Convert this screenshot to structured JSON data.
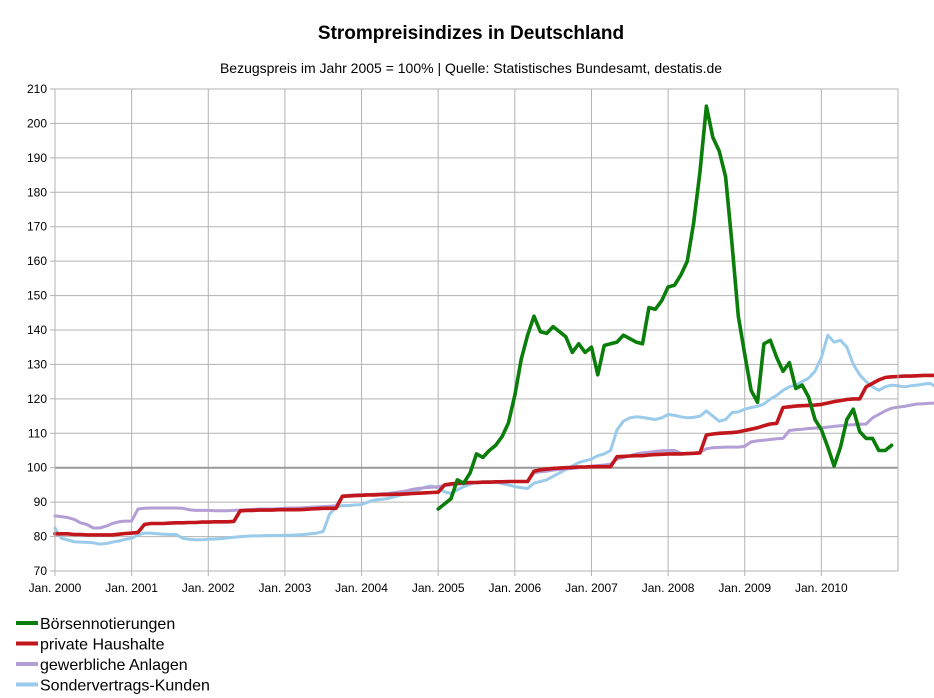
{
  "chart_data": {
    "type": "line",
    "title": "Strompreisindizes in Deutschland",
    "subtitle": "Bezugspreis im Jahr 2005 = 100% | Quelle: Statistisches Bundesamt, destatis.de",
    "xlabel": "",
    "ylabel": "",
    "x_ticks": [
      "Jan. 2000",
      "Jan. 2001",
      "Jan. 2002",
      "Jan. 2003",
      "Jan. 2004",
      "Jan. 2005",
      "Jan. 2006",
      "Jan. 2007",
      "Jan. 2008",
      "Jan. 2009",
      "Jan. 2010"
    ],
    "y_ticks": [
      70,
      80,
      90,
      100,
      110,
      120,
      130,
      140,
      150,
      160,
      170,
      180,
      190,
      200,
      210
    ],
    "ylim": [
      70,
      210
    ],
    "xlim": [
      "2000-01",
      "2011-01"
    ],
    "grid": true,
    "reference_line": 100,
    "legend_position": "bottom-left",
    "series": [
      {
        "name": "Börsennotierungen",
        "color": "#0a7d0a",
        "start": "2005-01",
        "values": [
          88,
          89.5,
          91,
          96.5,
          95.5,
          98.5,
          104,
          103,
          105,
          106.5,
          109,
          113,
          121,
          131.5,
          138.5,
          144,
          139.5,
          139,
          141,
          139.5,
          138,
          133.5,
          136,
          133.5,
          135,
          127,
          135.5,
          136,
          136.5,
          138.5,
          137.5,
          136.5,
          136,
          146.5,
          146,
          148.5,
          152.5,
          153,
          156,
          160,
          171,
          186,
          205,
          196,
          192,
          184.5,
          165,
          144,
          133,
          122.5,
          119,
          136,
          137,
          132,
          128,
          130.5,
          123,
          124,
          120.5,
          114,
          111,
          106,
          100.5,
          106,
          114,
          117,
          110.5,
          108.5,
          108.5,
          105,
          105,
          106.5
        ]
      },
      {
        "name": "private Haushalte",
        "color": "#c0161c",
        "start": "2000-01",
        "values": [
          80.8,
          80.8,
          80.8,
          80.6,
          80.6,
          80.5,
          80.5,
          80.5,
          80.5,
          80.5,
          80.7,
          80.9,
          81,
          81.2,
          83.5,
          83.8,
          83.8,
          83.8,
          83.9,
          84,
          84,
          84.1,
          84.1,
          84.2,
          84.2,
          84.3,
          84.3,
          84.3,
          84.4,
          87.5,
          87.6,
          87.6,
          87.7,
          87.7,
          87.7,
          87.8,
          87.8,
          87.8,
          87.8,
          87.9,
          88,
          88.1,
          88.2,
          88.2,
          88.2,
          91.7,
          91.8,
          91.9,
          92,
          92.1,
          92.1,
          92.2,
          92.2,
          92.3,
          92.3,
          92.4,
          92.5,
          92.6,
          92.7,
          92.8,
          92.9,
          95,
          95.3,
          95.5,
          95.6,
          95.7,
          95.7,
          95.8,
          95.8,
          95.9,
          95.9,
          96,
          96,
          96,
          96,
          99,
          99.4,
          99.6,
          99.8,
          99.9,
          100,
          100.1,
          100.2,
          100.2,
          100.3,
          100.3,
          100.3,
          100.3,
          103.2,
          103.3,
          103.4,
          103.5,
          103.5,
          103.7,
          103.8,
          103.9,
          104,
          104,
          104,
          104.1,
          104.2,
          104.3,
          109.5,
          109.8,
          110,
          110.1,
          110.2,
          110.4,
          110.8,
          111.2,
          111.6,
          112.2,
          112.7,
          112.9,
          117.5,
          117.7,
          117.9,
          118,
          118.1,
          118.2,
          118.4,
          118.8,
          119.2,
          119.5,
          119.8,
          120,
          120,
          123.5,
          124.5,
          125.5,
          126.2,
          126.4,
          126.5,
          126.6,
          126.6,
          126.7,
          126.8,
          126.8,
          126.8,
          128,
          128.6,
          128.7,
          128.8,
          128.8,
          129,
          129.5,
          130.3,
          130.7,
          130.8,
          130.9,
          131,
          131
        ]
      },
      {
        "name": "gewerbliche Anlagen",
        "color": "#b49ed6",
        "start": "2000-01",
        "values": [
          86,
          85.8,
          85.5,
          85,
          84,
          83.5,
          82.5,
          82.5,
          83,
          83.8,
          84.3,
          84.5,
          84.5,
          88,
          88.2,
          88.3,
          88.3,
          88.3,
          88.3,
          88.3,
          88.2,
          87.8,
          87.6,
          87.6,
          87.6,
          87.5,
          87.5,
          87.5,
          87.6,
          87.7,
          87.8,
          87.9,
          88,
          88,
          88,
          88.1,
          88.2,
          88.3,
          88.3,
          88.4,
          88.5,
          88.6,
          88.7,
          88.8,
          88.9,
          91.8,
          92,
          92.1,
          92.2,
          92.2,
          92.3,
          92.4,
          92.5,
          92.7,
          93,
          93.3,
          93.7,
          94,
          94.2,
          94.3,
          94.5,
          94.8,
          95,
          95.2,
          95.4,
          95.5,
          95.6,
          95.7,
          95.8,
          95.8,
          95.9,
          96,
          96,
          96,
          96,
          98.5,
          98.8,
          99,
          99.3,
          99.5,
          99.7,
          99.8,
          100,
          100.2,
          100.4,
          100.6,
          100.8,
          101,
          102.5,
          103,
          103.5,
          104,
          104.3,
          104.5,
          104.7,
          104.9,
          105,
          105,
          104.2,
          104,
          104.2,
          104.5,
          105.5,
          105.8,
          105.9,
          106,
          106,
          106,
          106.2,
          107.5,
          107.8,
          108,
          108.2,
          108.4,
          108.5,
          110.8,
          111,
          111.2,
          111.4,
          111.5,
          111.6,
          111.8,
          112,
          112.2,
          112.4,
          112.5,
          112.6,
          112.7,
          114.5,
          115.5,
          116.5,
          117.3,
          117.6,
          117.8,
          118.2,
          118.5,
          118.6,
          118.7,
          118.8,
          118.8,
          120.5,
          121.3,
          121.6,
          121.9,
          122.3,
          122.7,
          123,
          123.2,
          123.3,
          123.4,
          123.5,
          123.6,
          123.6
        ]
      },
      {
        "name": "Sondervertrags-Kunden",
        "color": "#9bcbea",
        "start": "2000-01",
        "values": [
          82.5,
          79.5,
          79,
          78.5,
          78.4,
          78.3,
          78.2,
          77.8,
          78,
          78.4,
          78.7,
          79.2,
          79.5,
          80.5,
          81,
          81,
          80.8,
          80.7,
          80.6,
          80.6,
          79.5,
          79.2,
          79.1,
          79.1,
          79.2,
          79.3,
          79.4,
          79.6,
          79.8,
          80,
          80.1,
          80.2,
          80.2,
          80.3,
          80.3,
          80.3,
          80.4,
          80.4,
          80.5,
          80.6,
          80.8,
          81,
          81.5,
          86.5,
          88.5,
          89,
          89,
          89.2,
          89.3,
          90,
          90.6,
          90.8,
          91,
          91.5,
          92,
          92.5,
          93,
          93.6,
          94.4,
          94.7,
          94,
          93,
          92.5,
          93.5,
          94.5,
          95.2,
          95.8,
          95.9,
          96,
          95.8,
          95.4,
          95,
          94.5,
          94.2,
          94,
          95.5,
          96,
          96.5,
          97.5,
          98.5,
          99.5,
          100.5,
          101.5,
          102,
          102.5,
          103.5,
          104,
          105,
          111,
          113.5,
          114.5,
          114.8,
          114.6,
          114.3,
          114,
          114.5,
          115.5,
          115.2,
          114.8,
          114.5,
          114.6,
          115,
          116.5,
          115,
          113.5,
          114,
          116,
          116.2,
          117,
          117.5,
          117.8,
          118.5,
          120,
          121,
          122.5,
          123.5,
          124,
          125,
          126,
          128,
          132,
          138.5,
          136.5,
          137,
          135,
          130,
          127,
          125,
          123.5,
          122.5,
          123.5,
          124,
          123.8,
          123.5,
          123.8,
          124,
          124.3,
          124.5,
          123.5,
          123,
          122.8,
          122.5,
          122,
          122.5,
          123.2,
          124,
          125.5,
          126,
          125,
          124,
          124,
          125.5,
          126.5
        ]
      }
    ]
  }
}
